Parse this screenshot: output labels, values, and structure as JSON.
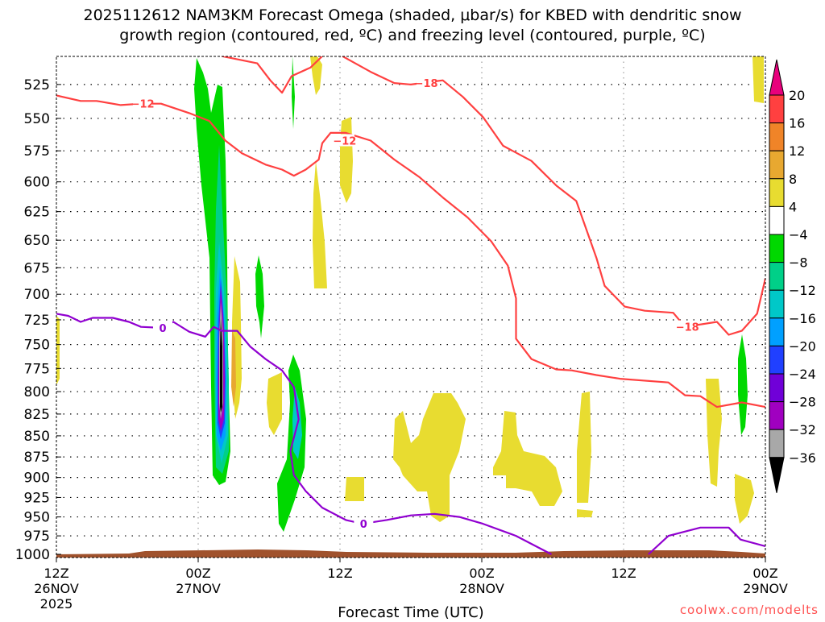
{
  "chart_data": {
    "type": "heatmap",
    "title_line1": "2025112612 NAM3KM Forecast Omega (shaded, μbar/s) for KBED with dendritic snow",
    "title_line2": "growth region (contoured, red, ºC) and freezing level (contoured, purple, ºC)",
    "xlabel": "Forecast Time (UTC)",
    "ylabel": "",
    "credit": "coolwx.com/modelts",
    "xlim_hours": [
      0,
      60
    ],
    "ylim_hpa": [
      505,
      1000
    ],
    "y_scale": "log",
    "grid": true,
    "x_ticks": [
      {
        "hour": 0,
        "lines": [
          "12Z",
          "26NOV",
          "2025"
        ]
      },
      {
        "hour": 12,
        "lines": [
          "00Z",
          "27NOV"
        ]
      },
      {
        "hour": 24,
        "lines": [
          "12Z"
        ]
      },
      {
        "hour": 36,
        "lines": [
          "00Z",
          "28NOV"
        ]
      },
      {
        "hour": 48,
        "lines": [
          "12Z"
        ]
      },
      {
        "hour": 60,
        "lines": [
          "00Z",
          "29NOV"
        ]
      }
    ],
    "y_ticks": [
      525,
      550,
      575,
      600,
      625,
      650,
      675,
      700,
      725,
      750,
      775,
      800,
      825,
      850,
      875,
      900,
      925,
      950,
      975,
      1000
    ],
    "colorbar": {
      "labels": [
        "20",
        "16",
        "12",
        "8",
        "4",
        "−4",
        "−8",
        "−12",
        "−16",
        "−20",
        "−24",
        "−28",
        "−32",
        "−36"
      ],
      "colors": [
        "#ff4040",
        "#f08428",
        "#e8a830",
        "#e8dc30",
        "#ffffff",
        "#00d800",
        "#00d088",
        "#00c8c8",
        "#00a0ff",
        "#2040ff",
        "#7000d8",
        "#a000c0",
        "#a8a8a8"
      ],
      "top_arrow_color": "#e8007c",
      "bottom_arrow_color": "#000000"
    },
    "contours": [
      {
        "name": "dgz-minus12",
        "value": -12,
        "color": "#ff4040",
        "label": "−12",
        "label_points": [
          [
            7.3,
            539
          ],
          [
            24.4,
            567
          ]
        ],
        "points": [
          [
            0,
            533
          ],
          [
            2.05,
            537
          ],
          [
            3.4,
            537
          ],
          [
            5.45,
            540
          ],
          [
            7.16,
            539
          ],
          [
            8.86,
            539
          ],
          [
            11.25,
            546
          ],
          [
            12.95,
            552
          ],
          [
            14.3,
            567
          ],
          [
            15.7,
            577
          ],
          [
            17.7,
            586
          ],
          [
            19.1,
            590
          ],
          [
            20.1,
            595
          ],
          [
            21.1,
            590
          ],
          [
            22.2,
            582
          ],
          [
            22.5,
            569
          ],
          [
            23.2,
            561
          ],
          [
            24.5,
            561
          ],
          [
            26.6,
            567
          ],
          [
            28.6,
            582
          ],
          [
            30.7,
            596
          ],
          [
            32.7,
            613
          ],
          [
            34.8,
            630
          ],
          [
            36.8,
            651
          ],
          [
            38.2,
            673
          ],
          [
            38.9,
            704
          ],
          [
            38.9,
            744
          ],
          [
            40.2,
            765
          ],
          [
            42.3,
            776
          ],
          [
            43.6,
            777
          ],
          [
            45.7,
            782
          ],
          [
            47.7,
            786
          ],
          [
            51.8,
            790
          ],
          [
            53.2,
            804
          ],
          [
            54.5,
            805
          ],
          [
            55.9,
            817
          ],
          [
            58,
            812
          ],
          [
            60,
            817
          ]
        ]
      },
      {
        "name": "dgz-minus18-a",
        "value": -18,
        "color": "#ff4040",
        "label": "",
        "label_points": [],
        "points": [
          [
            14,
            505
          ],
          [
            17,
            510
          ],
          [
            18.1,
            522
          ],
          [
            19.1,
            531
          ],
          [
            19.9,
            519
          ],
          [
            21.5,
            513
          ],
          [
            22.5,
            505
          ]
        ]
      },
      {
        "name": "dgz-minus18-b",
        "value": -18,
        "color": "#ff4040",
        "label": "−18",
        "label_points": [
          [
            31.3,
            524
          ],
          [
            53.4,
            732
          ]
        ],
        "points": [
          [
            24.2,
            505
          ],
          [
            26.6,
            516
          ],
          [
            28.6,
            524
          ],
          [
            30,
            525
          ],
          [
            32.7,
            522
          ],
          [
            34.4,
            534
          ],
          [
            36.1,
            549
          ],
          [
            37.8,
            571
          ],
          [
            40.2,
            583
          ],
          [
            42.3,
            603
          ],
          [
            44,
            616
          ],
          [
            45.7,
            666
          ],
          [
            46.4,
            692
          ],
          [
            48.1,
            712
          ],
          [
            49.8,
            716
          ],
          [
            52.2,
            718
          ],
          [
            53.2,
            732
          ],
          [
            55.9,
            727
          ],
          [
            56.9,
            740
          ],
          [
            58,
            736
          ],
          [
            59.3,
            719
          ],
          [
            60,
            685
          ]
        ]
      },
      {
        "name": "freezing-level-a",
        "value": 0,
        "color": "#9000d0",
        "label": "0",
        "label_points": [
          [
            9.0,
            733
          ],
          [
            26.0,
            959
          ]
        ],
        "points": [
          [
            0,
            719
          ],
          [
            1,
            721
          ],
          [
            2.05,
            727
          ],
          [
            3.07,
            723
          ],
          [
            4.77,
            723
          ],
          [
            6.14,
            727
          ],
          [
            7.16,
            732
          ],
          [
            8.86,
            733
          ],
          [
            9.9,
            727
          ],
          [
            11.25,
            737
          ],
          [
            12.6,
            742
          ],
          [
            13.3,
            732
          ],
          [
            14,
            736
          ],
          [
            15.3,
            736
          ],
          [
            16.4,
            752
          ],
          [
            17.7,
            765
          ],
          [
            19.1,
            777
          ],
          [
            20.1,
            795
          ],
          [
            20.5,
            831
          ],
          [
            19.8,
            868
          ],
          [
            20.1,
            897
          ],
          [
            21.1,
            917
          ],
          [
            22.5,
            938
          ],
          [
            24.5,
            954
          ],
          [
            25.9,
            959
          ],
          [
            27.95,
            954
          ],
          [
            30,
            948
          ],
          [
            32,
            946
          ],
          [
            34.1,
            950
          ],
          [
            36.1,
            959
          ],
          [
            38.9,
            975
          ],
          [
            41.9,
            1000
          ]
        ]
      },
      {
        "name": "freezing-level-b",
        "value": 0,
        "color": "#9000d0",
        "label": "",
        "label_points": [],
        "points": [
          [
            50.1,
            1000
          ],
          [
            51.8,
            975
          ],
          [
            54.5,
            964
          ],
          [
            56.9,
            964
          ],
          [
            57.9,
            980
          ],
          [
            60,
            989
          ]
        ]
      }
    ]
  }
}
